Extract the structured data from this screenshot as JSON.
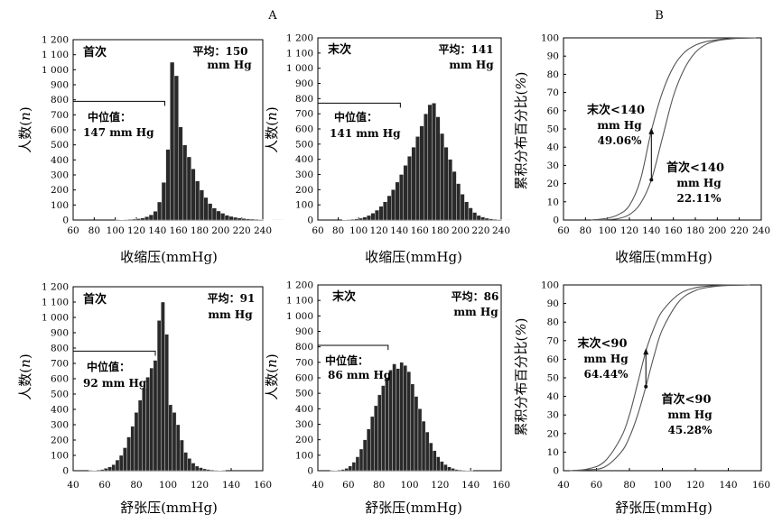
{
  "panel_labels": {
    "left": "A",
    "right": "B"
  },
  "chart_data": [
    {
      "type": "bar",
      "id": "sys-first",
      "label": "首次",
      "mean_label": "平均：150",
      "mean_unit": "mm Hg",
      "median_label": "中位值：",
      "median_value_label": "147 mm Hg",
      "median_value": 147,
      "median_count": 790,
      "xlabel": "收缩压(mmHg)",
      "ylabel": "人数(n)",
      "xlim": [
        60,
        240
      ],
      "ylim": [
        0,
        1200
      ],
      "xticks": [
        60,
        80,
        100,
        120,
        140,
        160,
        180,
        200,
        220,
        240
      ],
      "yticks": [
        "0",
        "100",
        "200",
        "300",
        "400",
        "500",
        "600",
        "700",
        "800",
        "900",
        "1 000",
        "1 100",
        "1 200"
      ],
      "x_start": 100,
      "bin_width": 4,
      "values": [
        1,
        2,
        3,
        4,
        6,
        9,
        14,
        22,
        35,
        58,
        120,
        250,
        470,
        1050,
        960,
        620,
        500,
        420,
        340,
        260,
        200,
        150,
        110,
        80,
        60,
        45,
        32,
        24,
        18,
        14,
        10,
        8,
        6,
        4,
        3,
        2,
        2,
        1,
        1,
        1
      ]
    },
    {
      "type": "bar",
      "id": "sys-last",
      "label": "末次",
      "mean_label": "平均：141",
      "mean_unit": "mm Hg",
      "median_label": "中位值：",
      "median_value_label": "141 mm Hg",
      "median_value": 141,
      "median_count": 770,
      "xlabel": "收缩压(mmHg)",
      "ylabel": "人数(n)",
      "xlim": [
        60,
        240
      ],
      "ylim": [
        0,
        1200
      ],
      "xticks": [
        60,
        80,
        100,
        120,
        140,
        160,
        180,
        200,
        220,
        240
      ],
      "yticks": [
        "0",
        "100",
        "200",
        "300",
        "400",
        "500",
        "600",
        "700",
        "800",
        "900",
        "1 000",
        "1 100",
        "1 200"
      ],
      "x_start": 84,
      "bin_width": 4,
      "values": [
        2,
        3,
        5,
        8,
        12,
        20,
        30,
        45,
        65,
        90,
        120,
        160,
        200,
        250,
        300,
        360,
        420,
        480,
        550,
        620,
        700,
        760,
        770,
        680,
        570,
        480,
        400,
        320,
        240,
        170,
        120,
        80,
        50,
        30,
        20,
        12,
        8,
        5,
        3,
        2,
        1
      ]
    },
    {
      "type": "line",
      "id": "sys-cumulative",
      "xlabel": "收缩压(mmHg)",
      "ylabel": "累积分布百分比(%)",
      "xlim": [
        60,
        240
      ],
      "ylim": [
        0,
        100
      ],
      "xticks": [
        60,
        80,
        100,
        120,
        140,
        160,
        180,
        200,
        220,
        240
      ],
      "yticks": [
        0,
        10,
        20,
        30,
        40,
        50,
        60,
        70,
        80,
        90,
        100
      ],
      "series": [
        {
          "name": "末次",
          "x": [
            85,
            100,
            110,
            120,
            130,
            140,
            150,
            160,
            170,
            180,
            190,
            200,
            215,
            235
          ],
          "values": [
            0,
            1,
            3,
            8,
            22,
            49.06,
            70,
            84,
            92,
            96,
            98,
            99,
            99.8,
            100
          ]
        },
        {
          "name": "首次",
          "x": [
            85,
            100,
            110,
            120,
            130,
            140,
            150,
            160,
            170,
            180,
            190,
            200,
            215,
            235
          ],
          "values": [
            0,
            0.2,
            0.8,
            3,
            9,
            22.11,
            45,
            68,
            83,
            92,
            96.5,
            98.5,
            99.6,
            100
          ]
        }
      ],
      "annotations": [
        {
          "series": "末次",
          "line1": "末次<140",
          "line2": "mm Hg",
          "line3": "49.06%",
          "x": 140,
          "y": 49.06
        },
        {
          "series": "首次",
          "line1": "首次<140",
          "line2": "mm Hg",
          "line3": "22.11%",
          "x": 140,
          "y": 22.11
        }
      ]
    },
    {
      "type": "bar",
      "id": "dia-first",
      "label": "首次",
      "mean_label": "平均：91",
      "mean_unit": "mm Hg",
      "median_label": "中位值：",
      "median_value_label": "92 mm Hg",
      "median_value": 92,
      "median_count": 780,
      "xlabel": "舒张压(mmHg)",
      "ylabel": "人数(n)",
      "xlim": [
        40,
        160
      ],
      "ylim": [
        0,
        1200
      ],
      "xticks": [
        40,
        60,
        80,
        100,
        120,
        140,
        160
      ],
      "yticks": [
        "0",
        "100",
        "200",
        "300",
        "400",
        "500",
        "600",
        "700",
        "800",
        "900",
        "1 000",
        "1 100",
        "1 200"
      ],
      "x_start": 50,
      "bin_width": 2.4,
      "values": [
        1,
        2,
        4,
        8,
        15,
        25,
        40,
        70,
        100,
        150,
        220,
        290,
        380,
        460,
        540,
        610,
        670,
        720,
        980,
        1100,
        890,
        430,
        380,
        300,
        200,
        120,
        80,
        50,
        30,
        20,
        12,
        8,
        5,
        3,
        2,
        1
      ]
    },
    {
      "type": "bar",
      "id": "dia-last",
      "label": "末次",
      "mean_label": "平均：86",
      "mean_unit": "mm Hg",
      "median_label": "中位值：",
      "median_value_label": "86 mm Hg",
      "median_value": 86,
      "median_count": 810,
      "xlabel": "舒张压(mmHg)",
      "ylabel": "人数(n)",
      "xlim": [
        40,
        160
      ],
      "ylim": [
        0,
        1200
      ],
      "xticks": [
        40,
        60,
        80,
        100,
        120,
        140,
        160
      ],
      "yticks": [
        "0",
        "100",
        "200",
        "300",
        "400",
        "500",
        "600",
        "700",
        "800",
        "900",
        "1 000",
        "1 100",
        "1 200"
      ],
      "x_start": 48,
      "bin_width": 2.4,
      "values": [
        1,
        2,
        4,
        8,
        15,
        30,
        55,
        90,
        140,
        200,
        270,
        350,
        420,
        490,
        550,
        600,
        650,
        690,
        660,
        700,
        680,
        640,
        560,
        480,
        400,
        320,
        250,
        180,
        130,
        90,
        60,
        40,
        25,
        15,
        8,
        5,
        3,
        2,
        1
      ]
    },
    {
      "type": "line",
      "id": "dia-cumulative",
      "xlabel": "舒张压(mmHg)",
      "ylabel": "累积分布百分比(%)",
      "xlim": [
        40,
        160
      ],
      "ylim": [
        0,
        100
      ],
      "xticks": [
        40,
        60,
        80,
        100,
        120,
        140,
        160
      ],
      "yticks": [
        0,
        10,
        20,
        30,
        40,
        50,
        60,
        70,
        80,
        90,
        100
      ],
      "series": [
        {
          "name": "末次",
          "x": [
            44,
            55,
            65,
            75,
            80,
            85,
            90,
            95,
            100,
            110,
            120,
            130,
            140,
            153
          ],
          "values": [
            0,
            1,
            5,
            18,
            30,
            47,
            64.44,
            77,
            86,
            95,
            98.5,
            99.5,
            99.9,
            100
          ]
        },
        {
          "name": "首次",
          "x": [
            44,
            55,
            65,
            75,
            80,
            85,
            90,
            95,
            100,
            110,
            120,
            130,
            140,
            153
          ],
          "values": [
            0,
            0.5,
            2,
            10,
            18,
            30,
            45.28,
            62,
            76,
            91,
            97,
            99,
            99.7,
            100
          ]
        }
      ],
      "annotations": [
        {
          "series": "末次",
          "line1": "末次<90",
          "line2": "mm Hg",
          "line3": "64.44%",
          "x": 90,
          "y": 64.44
        },
        {
          "series": "首次",
          "line1": "首次<90",
          "line2": "mm Hg",
          "line3": "45.28%",
          "x": 90,
          "y": 45.28
        }
      ]
    }
  ]
}
